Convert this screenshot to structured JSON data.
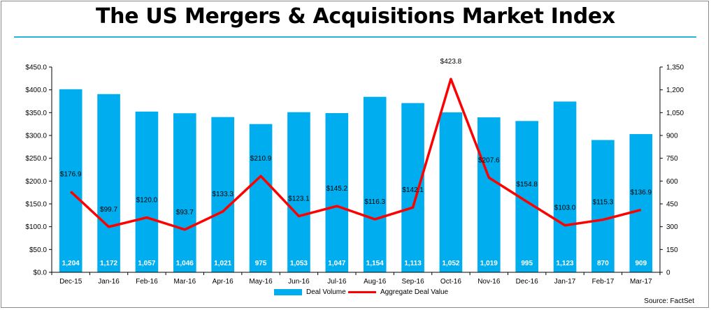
{
  "title": "The US Mergers & Acquisitions Market Index",
  "source": "Source: FactSet",
  "colors": {
    "bars": "#00aeef",
    "line": "#ff0000",
    "rule": "#28b5d9"
  },
  "chart_data": {
    "type": "bar+line",
    "categories": [
      "Dec-15",
      "Jan-16",
      "Feb-16",
      "Mar-16",
      "Apr-16",
      "May-16",
      "Jun-16",
      "Jul-16",
      "Aug-16",
      "Sep-16",
      "Oct-16",
      "Nov-16",
      "Dec-16",
      "Jan-17",
      "Feb-17",
      "Mar-17"
    ],
    "series": [
      {
        "name": "Deal Volume",
        "type": "bar",
        "axis": "right",
        "values": [
          1204,
          1172,
          1057,
          1046,
          1021,
          975,
          1053,
          1047,
          1154,
          1113,
          1052,
          1019,
          995,
          1123,
          870,
          909
        ],
        "labels": [
          "1,204",
          "1,172",
          "1,057",
          "1,046",
          "1,021",
          "975",
          "1,053",
          "1,047",
          "1,154",
          "1,113",
          "1,052",
          "1,019",
          "995",
          "1,123",
          "870",
          "909"
        ]
      },
      {
        "name": "Aggregate Deal Value",
        "type": "line",
        "axis": "left",
        "values": [
          176.9,
          99.7,
          120.0,
          93.7,
          133.3,
          210.9,
          123.1,
          145.2,
          116.3,
          142.1,
          423.8,
          207.6,
          154.8,
          103.0,
          115.3,
          136.9
        ],
        "labels": [
          "$176.9",
          "$99.7",
          "$120.0",
          "$93.7",
          "$133.3",
          "$210.9",
          "$123.1",
          "$145.2",
          "$116.3",
          "$142.1",
          "$423.8",
          "$207.6",
          "$154.8",
          "$103.0",
          "$115.3",
          "$136.9"
        ]
      }
    ],
    "left_axis": {
      "ylim": [
        0,
        450
      ],
      "ticks": [
        0,
        50,
        100,
        150,
        200,
        250,
        300,
        350,
        400,
        450
      ],
      "tick_labels": [
        "$0.0",
        "$50.0",
        "$100.0",
        "$150.0",
        "$200.0",
        "$250.0",
        "$300.0",
        "$350.0",
        "$400.0",
        "$450.0"
      ]
    },
    "right_axis": {
      "ylim": [
        0,
        1350
      ],
      "ticks": [
        0,
        150,
        300,
        450,
        600,
        750,
        900,
        1050,
        1200,
        1350
      ],
      "tick_labels": [
        "0",
        "150",
        "300",
        "450",
        "600",
        "750",
        "900",
        "1,050",
        "1,200",
        "1,350"
      ]
    },
    "grid": false,
    "legend_position": "bottom"
  }
}
